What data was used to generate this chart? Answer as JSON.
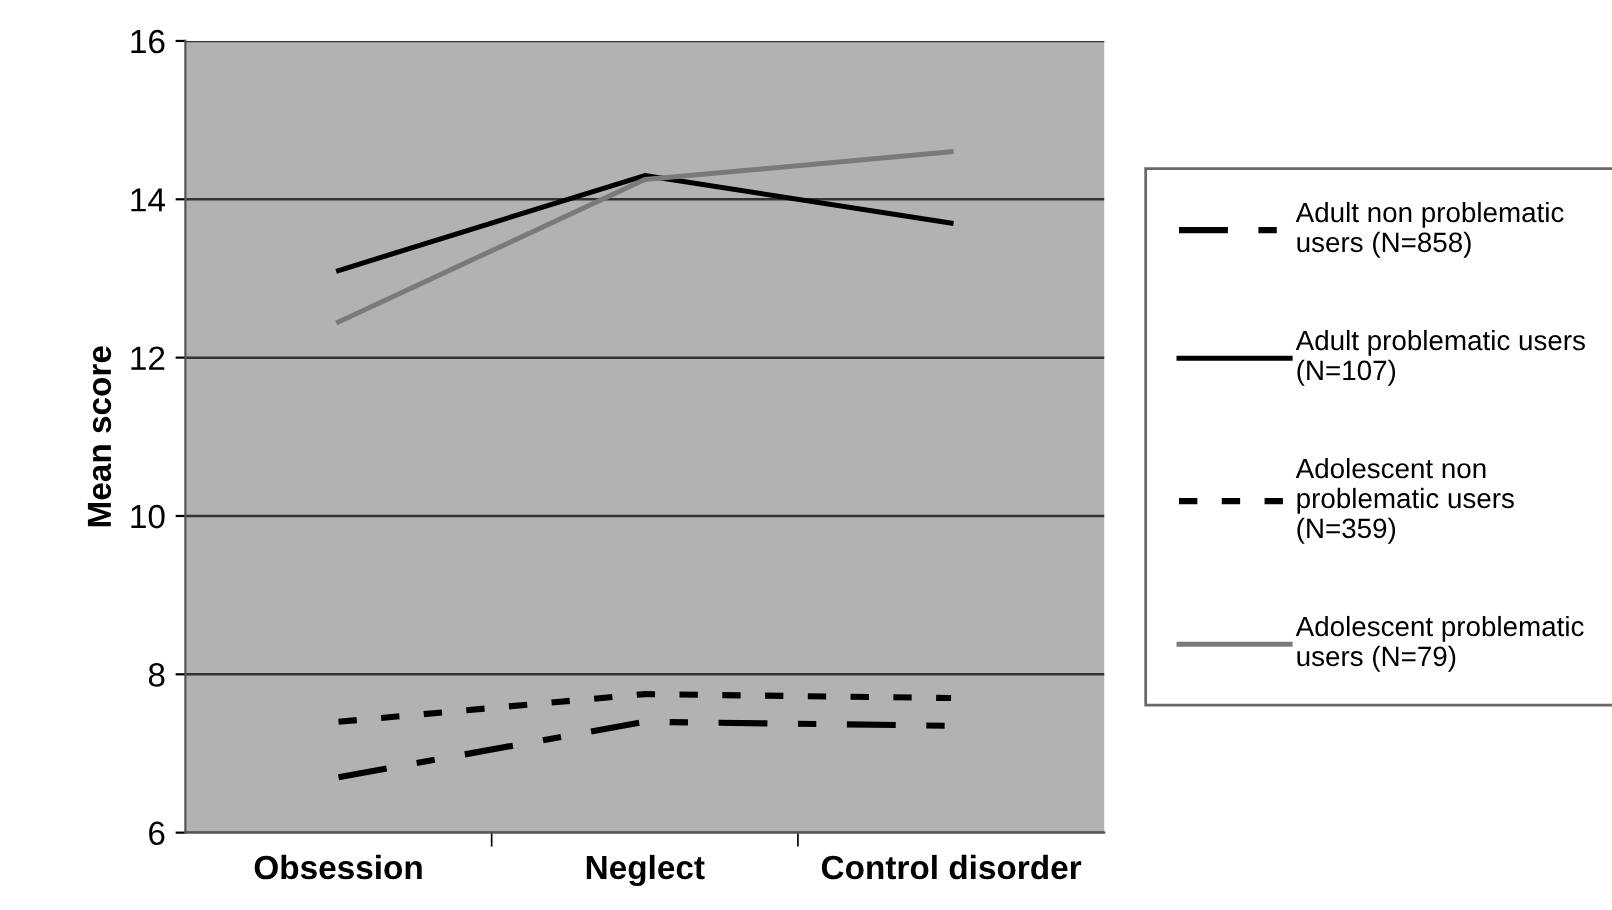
{
  "chart_data": {
    "type": "line",
    "ylabel": "Mean score",
    "categories": [
      "Obsession",
      "Neglect",
      "Control disorder"
    ],
    "series": [
      {
        "name": "Adult non problematic\nusers (N=858)",
        "color": "#000000",
        "line_style": "dashed",
        "values": [
          6.7,
          7.4,
          7.35
        ]
      },
      {
        "name": "Adult problematic users\n(N=107)",
        "color": "#000000",
        "line_style": "solid",
        "values": [
          13.1,
          14.3,
          13.7
        ]
      },
      {
        "name": "Adolescent non\nproblematic users\n(N=359)",
        "color": "#000000",
        "line_style": "dotted",
        "values": [
          7.4,
          7.75,
          7.7
        ]
      },
      {
        "name": "Adolescent problematic\nusers (N=79)",
        "color": "#7a7a7a",
        "line_style": "solid",
        "values": [
          12.45,
          14.25,
          14.6
        ]
      }
    ],
    "ylim": [
      6,
      16
    ],
    "yticks": [
      6,
      8,
      10,
      12,
      14,
      16
    ],
    "grid": "y",
    "legend": "right",
    "marker": "none"
  }
}
